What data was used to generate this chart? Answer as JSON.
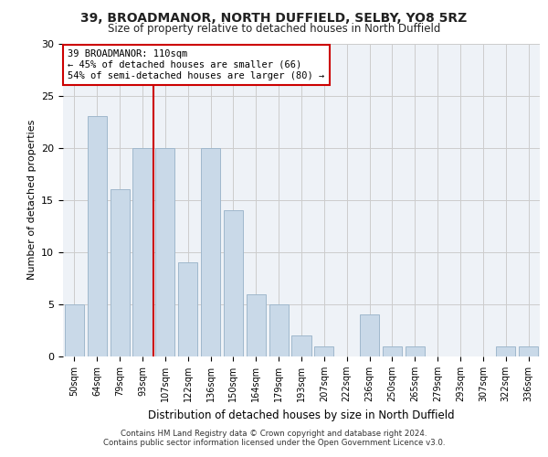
{
  "title1": "39, BROADMANOR, NORTH DUFFIELD, SELBY, YO8 5RZ",
  "title2": "Size of property relative to detached houses in North Duffield",
  "xlabel": "Distribution of detached houses by size in North Duffield",
  "ylabel": "Number of detached properties",
  "categories": [
    "50sqm",
    "64sqm",
    "79sqm",
    "93sqm",
    "107sqm",
    "122sqm",
    "136sqm",
    "150sqm",
    "164sqm",
    "179sqm",
    "193sqm",
    "207sqm",
    "222sqm",
    "236sqm",
    "250sqm",
    "265sqm",
    "279sqm",
    "293sqm",
    "307sqm",
    "322sqm",
    "336sqm"
  ],
  "values": [
    5,
    23,
    16,
    20,
    20,
    9,
    20,
    14,
    6,
    5,
    2,
    1,
    0,
    4,
    1,
    1,
    0,
    0,
    0,
    1,
    1
  ],
  "bar_color": "#c9d9e8",
  "bar_edge_color": "#a0b8cc",
  "vline_x_index": 3.5,
  "vline_color": "#cc0000",
  "annotation_text": "39 BROADMANOR: 110sqm\n← 45% of detached houses are smaller (66)\n54% of semi-detached houses are larger (80) →",
  "annotation_box_color": "#ffffff",
  "annotation_box_edge": "#cc0000",
  "ylim": [
    0,
    30
  ],
  "yticks": [
    0,
    5,
    10,
    15,
    20,
    25,
    30
  ],
  "grid_color": "#cccccc",
  "bg_color": "#eef2f7",
  "footer1": "Contains HM Land Registry data © Crown copyright and database right 2024.",
  "footer2": "Contains public sector information licensed under the Open Government Licence v3.0."
}
